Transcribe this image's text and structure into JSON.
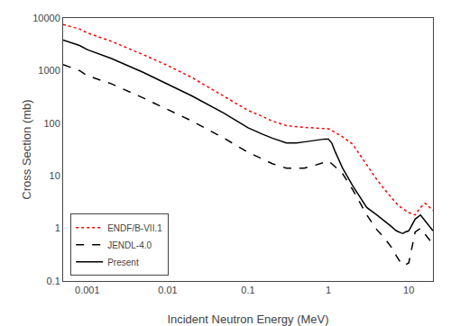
{
  "chart_data": {
    "type": "line",
    "xlabel": "Incident Neutron Energy (MeV)",
    "ylabel": "Cross Section (mb)",
    "log": true,
    "grid": false,
    "legend": "lower left",
    "xlim": [
      0.0005,
      20
    ],
    "ylim": [
      0.1,
      10000.0
    ],
    "xticks": [
      0.001,
      0.01,
      0.1,
      1,
      10
    ],
    "yticks": [
      0.1,
      1,
      10,
      100,
      1000,
      10000
    ],
    "series": [
      {
        "name": "ENDF/B-VII.1",
        "color": "red",
        "line_style": "dotted",
        "x": [
          0.0005,
          0.0008,
          0.001,
          0.002,
          0.005,
          0.01,
          0.02,
          0.05,
          0.1,
          0.15,
          0.2,
          0.3,
          0.4,
          0.5,
          0.6,
          0.7,
          0.8,
          0.9,
          1.0,
          1.1,
          1.2,
          1.5,
          2.0,
          3.0,
          4.0,
          5.0,
          6.0,
          7.0,
          8.0,
          9.0,
          10.0,
          12.0,
          14.0,
          16.0,
          20.0
        ],
        "values": [
          7500,
          6200,
          5200,
          3600,
          2000,
          1250,
          740,
          330,
          175,
          135,
          110,
          90,
          85,
          83,
          82,
          81,
          80,
          79,
          78,
          73,
          68,
          55,
          40,
          16,
          8.5,
          5.5,
          4.0,
          3.0,
          2.5,
          2.2,
          2.0,
          1.8,
          2.5,
          3.0,
          2.2
        ]
      },
      {
        "name": "JENDL-4.0",
        "color": "black",
        "line_style": "dashed",
        "x": [
          0.0005,
          0.0008,
          0.001,
          0.002,
          0.005,
          0.01,
          0.02,
          0.05,
          0.1,
          0.15,
          0.2,
          0.3,
          0.4,
          0.5,
          0.6,
          0.7,
          0.8,
          0.9,
          1.0,
          1.1,
          1.2,
          1.5,
          2.0,
          3.0,
          4.0,
          5.0,
          6.0,
          6.5,
          7.0,
          7.5,
          8.0,
          8.5,
          9.0,
          10.0,
          12.0,
          14.0,
          20.0
        ],
        "values": [
          1300,
          1000,
          800,
          560,
          300,
          180,
          110,
          52,
          28,
          21,
          17,
          14,
          14,
          14,
          15,
          16,
          17,
          18,
          19,
          17,
          15,
          11,
          5.5,
          1.8,
          0.95,
          0.65,
          0.45,
          0.38,
          0.3,
          0.25,
          0.22,
          0.2,
          0.2,
          0.22,
          0.85,
          1.0,
          0.5
        ]
      },
      {
        "name": "Present",
        "color": "black",
        "line_style": "solid",
        "x": [
          0.0005,
          0.0008,
          0.001,
          0.002,
          0.005,
          0.01,
          0.02,
          0.05,
          0.1,
          0.15,
          0.2,
          0.3,
          0.4,
          0.5,
          0.6,
          0.7,
          0.8,
          0.9,
          1.0,
          1.1,
          1.2,
          1.5,
          2.0,
          3.0,
          4.0,
          5.0,
          6.0,
          7.0,
          7.5,
          8.0,
          8.5,
          9.0,
          10.0,
          12.0,
          14.0,
          20.0
        ],
        "values": [
          3800,
          3000,
          2500,
          1700,
          920,
          560,
          330,
          155,
          82,
          62,
          52,
          42,
          42,
          44,
          46,
          48,
          49,
          50,
          50,
          42,
          30,
          14,
          6.5,
          2.5,
          1.8,
          1.4,
          1.1,
          0.9,
          0.85,
          0.82,
          0.8,
          0.85,
          0.9,
          1.5,
          1.8,
          0.9
        ]
      }
    ]
  }
}
